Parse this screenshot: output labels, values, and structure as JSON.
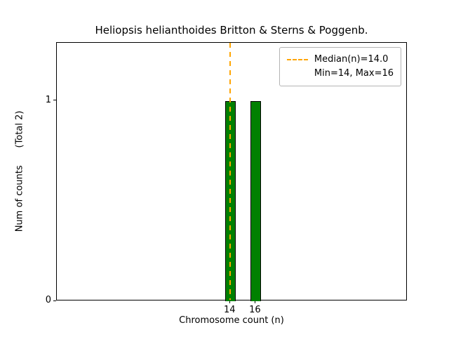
{
  "chart_data": {
    "type": "bar",
    "title": "Heliopsis helianthoides Britton & Sterns & Poggenb.",
    "xlabel": "Chromosome count (n)",
    "ylabel": "Num of counts      (Total 2)",
    "x": [
      14,
      16
    ],
    "values": [
      1,
      1
    ],
    "bar_width": 0.8,
    "bar_color": "#008000",
    "bar_edge_color": "#000000",
    "median": 14.0,
    "min": 14,
    "max": 16,
    "total": 2,
    "median_line_color": "#FFA500",
    "legend_entries": [
      "Median(n)=14.0",
      "Min=14, Max=16"
    ],
    "legend_position": "upper right",
    "xlim": [
      0.3,
      28.0
    ],
    "ylim": [
      0,
      1.29
    ],
    "xticks": [
      14,
      16
    ],
    "yticks": [
      0,
      1
    ],
    "grid": false
  }
}
